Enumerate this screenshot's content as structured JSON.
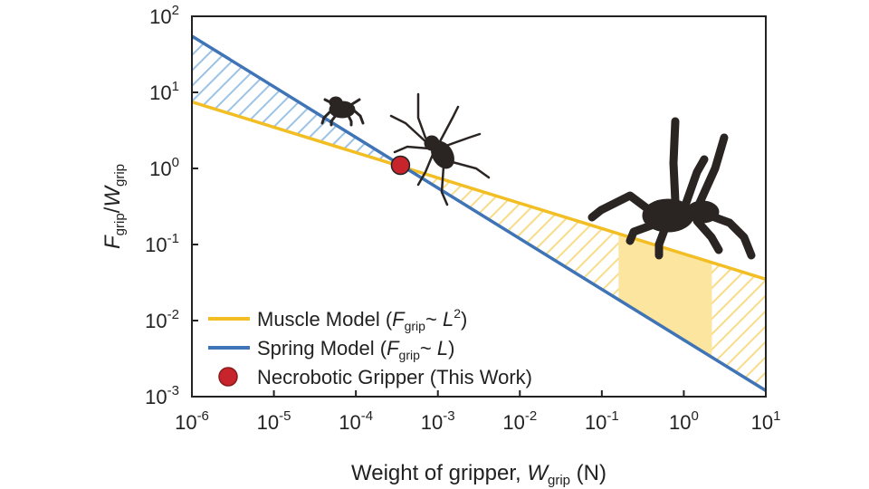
{
  "chart_data": {
    "type": "line",
    "x_scale": "log",
    "y_scale": "log",
    "xlim": [
      1e-06,
      10
    ],
    "ylim": [
      0.001,
      100
    ],
    "x_ticks": [
      {
        "value": 1e-06,
        "base": "10",
        "exp": "-6"
      },
      {
        "value": 1e-05,
        "base": "10",
        "exp": "-5"
      },
      {
        "value": 0.0001,
        "base": "10",
        "exp": "-4"
      },
      {
        "value": 0.001,
        "base": "10",
        "exp": "-3"
      },
      {
        "value": 0.01,
        "base": "10",
        "exp": "-2"
      },
      {
        "value": 0.1,
        "base": "10",
        "exp": "-1"
      },
      {
        "value": 1,
        "base": "10",
        "exp": "0"
      },
      {
        "value": 10,
        "base": "10",
        "exp": "1"
      }
    ],
    "y_ticks": [
      {
        "value": 0.001,
        "base": "10",
        "exp": "-3"
      },
      {
        "value": 0.01,
        "base": "10",
        "exp": "-2"
      },
      {
        "value": 0.1,
        "base": "10",
        "exp": "-1"
      },
      {
        "value": 1,
        "base": "10",
        "exp": "0"
      },
      {
        "value": 10,
        "base": "10",
        "exp": "1"
      },
      {
        "value": 100,
        "base": "10",
        "exp": "2"
      }
    ],
    "xlabel": {
      "prefix": "Weight of gripper, ",
      "var": "W",
      "sub": "grip",
      "suffix": " (N)"
    },
    "ylabel": {
      "num_var": "F",
      "num_sub": "grip",
      "slash": "/",
      "den_var": "W",
      "den_sub": "grip"
    },
    "series": [
      {
        "name": "Muscle Model",
        "legend": {
          "pre": "Muscle Model (",
          "var": "F",
          "sub": "grip",
          "mid": "~ ",
          "var2": "L",
          "sup": "2",
          "post": ")"
        },
        "color": "#F2BE24",
        "x": [
          1e-06,
          10
        ],
        "y": [
          7.5,
          0.035
        ]
      },
      {
        "name": "Spring Model",
        "legend": {
          "pre": "Spring Model (",
          "var": "F",
          "sub": "grip",
          "mid": "~ ",
          "var2": "L",
          "sup": "",
          "post": ")"
        },
        "color": "#3F74B6",
        "x": [
          1e-06,
          10
        ],
        "y": [
          55,
          0.0012
        ]
      }
    ],
    "points": [
      {
        "name": "Necrobotic Gripper (This Work)",
        "x": 0.00035,
        "y": 1.1,
        "color": "#C8242B"
      }
    ],
    "shaded_region": {
      "x_range": [
        0.16,
        2.2
      ],
      "color": "#FCE59E"
    },
    "icons": [
      "spider-small-icon",
      "spider-medium-icon",
      "tarantula-icon"
    ]
  }
}
